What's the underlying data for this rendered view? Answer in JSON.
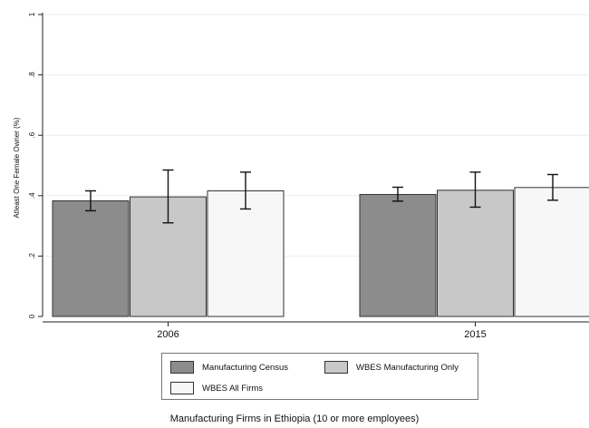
{
  "chart_data": {
    "type": "bar",
    "title": "",
    "xlabel": "Manufacturing Firms in Ethiopia (10 or more employees)",
    "ylabel": "Atleast One Female Owner (%)",
    "ylim": [
      0,
      1
    ],
    "yticks": [
      0,
      0.2,
      0.4,
      0.6,
      0.8,
      1
    ],
    "ytick_labels": [
      "0",
      ".2",
      ".4",
      ".6",
      ".8",
      "1"
    ],
    "categories": [
      "2006",
      "2015"
    ],
    "series": [
      {
        "name": "Manufacturing Census",
        "color": "#8c8c8c",
        "values": [
          0.383,
          0.404
        ],
        "ci_low": [
          0.35,
          0.382
        ],
        "ci_high": [
          0.416,
          0.428
        ]
      },
      {
        "name": "WBES Manufacturing Only",
        "color": "#c8c8c8",
        "values": [
          0.396,
          0.418
        ],
        "ci_low": [
          0.31,
          0.362
        ],
        "ci_high": [
          0.485,
          0.478
        ]
      },
      {
        "name": "WBES All Firms",
        "color": "#f7f7f7",
        "values": [
          0.416,
          0.427
        ],
        "ci_low": [
          0.356,
          0.385
        ],
        "ci_high": [
          0.478,
          0.47
        ]
      }
    ],
    "grid": true,
    "legend": "bottom"
  }
}
